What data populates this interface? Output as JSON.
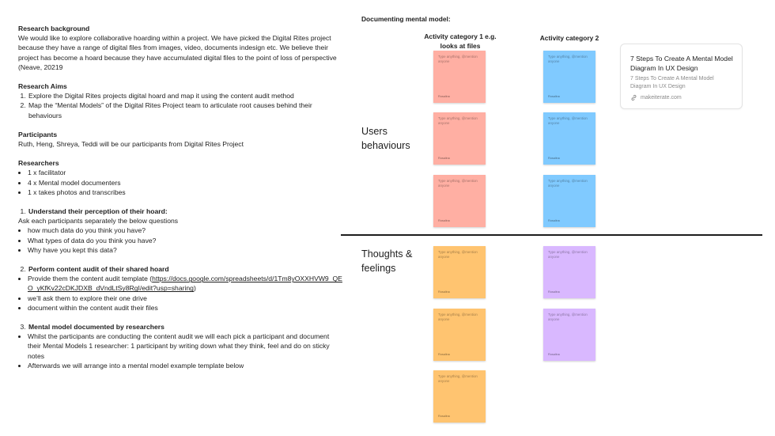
{
  "doc": {
    "background_h": "Research background",
    "background_p": "We would like to explore collaborative hoarding within a project. We have picked the Digital Rites project because they have a range of digital files from images, video, documents indesign etc. We believe their project has become a hoard because they have accumulated digital files to the point of loss of perspective (Neave, 20219",
    "aims_h": "Research Aims",
    "aims": [
      "Explore the Digital Rites projects digital hoard and map it using the content audit method",
      "Map the “Mental Models” of the Digital Rites Project team to articulate root causes behind their behaviours"
    ],
    "participants_h": "Participants",
    "participants_p": "Ruth, Heng, Shreya, Teddi will be our participants from Digital Rites Project",
    "researchers_h": "Researchers",
    "researchers": [
      "1 x facilitator",
      "4 x Mental model documenters",
      "1 x takes photos and transcribes"
    ],
    "s1_h": "Understand their perception of their hoard:",
    "s1_p": "Ask each participants separately the below questions",
    "s1_items": [
      "how much data do you think you have?",
      "What types of data do you think you have?",
      "Why have you kept this data?"
    ],
    "s2_h": "Perform content audit of their shared hoard",
    "s2_i1_pre": "Provide them the content audit template (",
    "s2_i1_link": "https://docs.google.com/spreadsheets/d/1Tm8yOXXHVW9_QEO_yKfKv22cDKJDXB_dVndLtSy8RgI/edit?usp=sharing",
    "s2_i1_post": ")",
    "s2_items": [
      " we’ll ask them to explore their one drive",
      " document within the content audit their files"
    ],
    "s3_h": "Mental model documented by researchers",
    "s3_items": [
      "Whilst the participants are conducting the content audit we will each pick a participant and document their Mental Models 1 researcher: 1 participant by writing down what they think, feel and do on sticky notes",
      "Afterwards we will arrange into a mental model example template below"
    ]
  },
  "board": {
    "title": "Documenting mental model:",
    "col1": "Activity category 1 e.g. looks at files",
    "col2": "Activity category 2",
    "row1": "Users behaviours",
    "row2": "Thoughts & feelings",
    "sticky_placeholder": "Type anything, @mention anyone",
    "sticky_author": "Rosalina",
    "colors": {
      "red": "#ffafa3",
      "blue": "#80caff",
      "orange": "#ffc470",
      "purple": "#d9b8ff"
    }
  },
  "card": {
    "title": "7 Steps To Create A Mental Model Diagram In UX Design",
    "desc": "7 Steps To Create A Mental Model Diagram In UX Design",
    "url": "makeiterate.com",
    "icon": "link-icon"
  }
}
